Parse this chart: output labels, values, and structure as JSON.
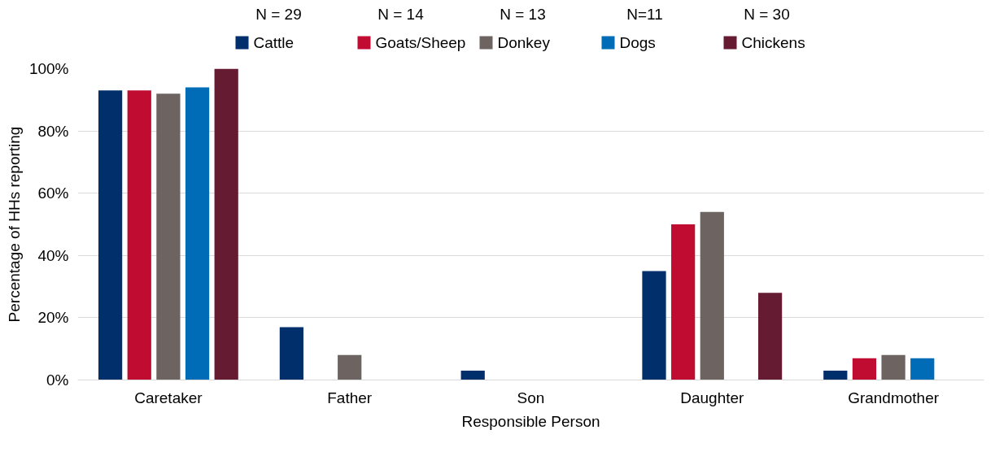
{
  "chart_data": {
    "type": "bar",
    "xlabel": "Responsible Person",
    "ylabel": "Percentage of HHs reporting",
    "categories": [
      "Caretaker",
      "Father",
      "Son",
      "Daughter",
      "Grandmother"
    ],
    "series": [
      {
        "name": "Cattle",
        "color": "#002f6c",
        "values": [
          93,
          17,
          3,
          35,
          3
        ]
      },
      {
        "name": "Goats/Sheep",
        "color": "#c00c30",
        "values": [
          93,
          0,
          0,
          50,
          7
        ]
      },
      {
        "name": "Donkey",
        "color": "#6d6462",
        "values": [
          92,
          8,
          0,
          54,
          8
        ]
      },
      {
        "name": "Dogs",
        "color": "#006bb6",
        "values": [
          94,
          0,
          0,
          0,
          7
        ]
      },
      {
        "name": "Chickens",
        "color": "#651c32",
        "values": [
          100,
          0,
          0,
          28,
          0
        ]
      }
    ],
    "annotations": [
      "N = 29",
      "N = 14",
      "N = 13",
      "N=11",
      "N = 30"
    ],
    "ylim": [
      0,
      100
    ],
    "yticks": [
      {
        "value": 0,
        "label": "0%"
      },
      {
        "value": 20,
        "label": "20%"
      },
      {
        "value": 40,
        "label": "40%"
      },
      {
        "value": 60,
        "label": "60%"
      },
      {
        "value": 80,
        "label": "80%"
      },
      {
        "value": 100,
        "label": "100%"
      }
    ],
    "grid": "y",
    "legend": "top"
  }
}
